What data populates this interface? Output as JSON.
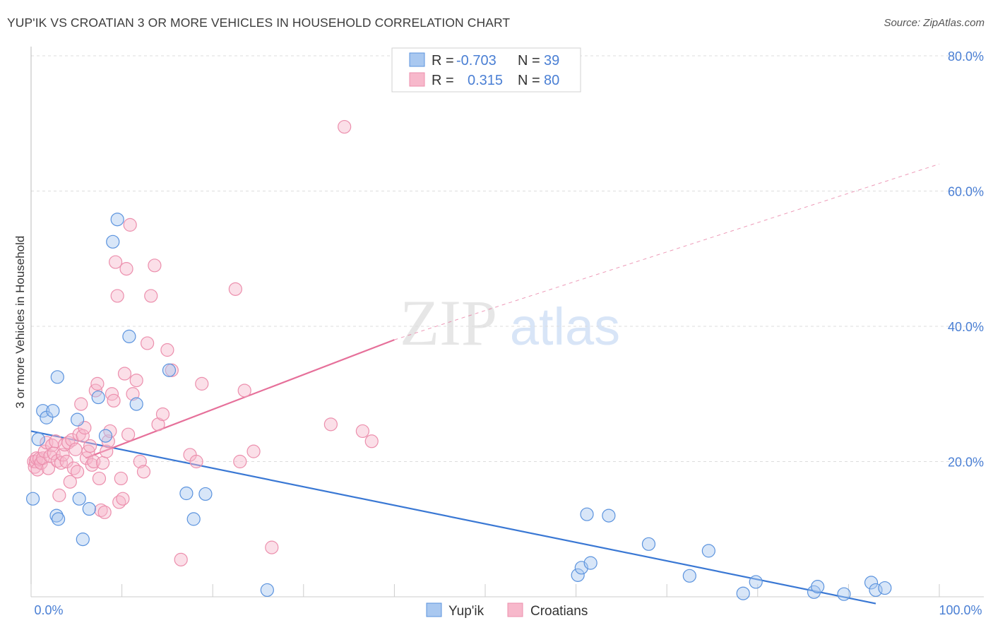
{
  "header": {
    "title": "YUP'IK VS CROATIAN 3 OR MORE VEHICLES IN HOUSEHOLD CORRELATION CHART",
    "source": "Source: ZipAtlas.com"
  },
  "legend_top": {
    "rows": [
      {
        "r_label": "R =",
        "r_value": "-0.703",
        "n_label": "N =",
        "n_value": "39"
      },
      {
        "r_label": "R =",
        "r_value": "0.315",
        "n_label": "N =",
        "n_value": "80"
      }
    ]
  },
  "legend_bottom": {
    "series1": "Yup'ik",
    "series2": "Croatians"
  },
  "watermark": {
    "zip": "ZIP",
    "atlas": "atlas"
  },
  "colors": {
    "yupik_fill": "#a9c8f0",
    "yupik_stroke": "#5b93de",
    "yupik_line": "#3a78d4",
    "croatian_fill": "#f7b8cb",
    "croatian_stroke": "#ec8fad",
    "croatian_line": "#e6709a",
    "grid": "#dddddd",
    "tick_label": "#4a7fd4"
  },
  "chart_data": {
    "type": "scatter",
    "title": "YUP'IK VS CROATIAN 3 OR MORE VEHICLES IN HOUSEHOLD CORRELATION CHART",
    "xlabel": "",
    "ylabel": "3 or more Vehicles in Household",
    "xlim": [
      0,
      100
    ],
    "ylim": [
      0,
      80
    ],
    "x_tick_labels": [
      "0.0%",
      "100.0%"
    ],
    "y_ticks": [
      20,
      40,
      60,
      80
    ],
    "y_tick_labels": [
      "20.0%",
      "40.0%",
      "60.0%",
      "80.0%"
    ],
    "grid": true,
    "legend_placement": "top-center",
    "series": [
      {
        "name": "Yup'ik",
        "r": -0.703,
        "n": 39,
        "trend": {
          "x": [
            0,
            93
          ],
          "y": [
            24.5,
            -1.0
          ],
          "dashed_extension": false
        },
        "points": [
          [
            0.2,
            14.5
          ],
          [
            0.8,
            23.3
          ],
          [
            1.3,
            27.5
          ],
          [
            1.7,
            26.5
          ],
          [
            2.4,
            27.5
          ],
          [
            2.8,
            12.0
          ],
          [
            3.0,
            11.5
          ],
          [
            2.9,
            32.5
          ],
          [
            5.1,
            26.2
          ],
          [
            5.3,
            14.5
          ],
          [
            5.7,
            8.5
          ],
          [
            6.4,
            13.0
          ],
          [
            7.4,
            29.5
          ],
          [
            8.2,
            23.8
          ],
          [
            9.0,
            52.5
          ],
          [
            9.5,
            55.8
          ],
          [
            10.8,
            38.5
          ],
          [
            11.6,
            28.5
          ],
          [
            15.2,
            33.5
          ],
          [
            17.1,
            15.3
          ],
          [
            17.9,
            11.5
          ],
          [
            19.2,
            15.2
          ],
          [
            26.0,
            1.0
          ],
          [
            60.2,
            3.2
          ],
          [
            60.6,
            4.3
          ],
          [
            61.2,
            12.2
          ],
          [
            61.6,
            5.0
          ],
          [
            63.6,
            12.0
          ],
          [
            68.0,
            7.8
          ],
          [
            72.5,
            3.1
          ],
          [
            74.6,
            6.8
          ],
          [
            78.4,
            0.5
          ],
          [
            79.8,
            2.2
          ],
          [
            86.2,
            0.7
          ],
          [
            86.6,
            1.5
          ],
          [
            89.5,
            0.4
          ],
          [
            92.5,
            2.1
          ],
          [
            93.0,
            1.0
          ],
          [
            94.0,
            1.3
          ]
        ]
      },
      {
        "name": "Croatians",
        "r": 0.315,
        "n": 80,
        "trend": {
          "x": [
            6,
            40
          ],
          "y": [
            20.5,
            38.0
          ],
          "extension_x": [
            40,
            100
          ],
          "extension_y": [
            38.0,
            64.0
          ],
          "dashed_extension": true
        },
        "points": [
          [
            0.3,
            20.0
          ],
          [
            0.4,
            19.2
          ],
          [
            0.5,
            20.0
          ],
          [
            0.6,
            20.5
          ],
          [
            0.7,
            18.8
          ],
          [
            0.9,
            20.4
          ],
          [
            1.1,
            19.8
          ],
          [
            1.3,
            20.5
          ],
          [
            1.5,
            21.5
          ],
          [
            1.7,
            22.8
          ],
          [
            1.9,
            19.0
          ],
          [
            2.1,
            20.8
          ],
          [
            2.3,
            22.4
          ],
          [
            2.5,
            21.2
          ],
          [
            2.7,
            23.0
          ],
          [
            2.9,
            20.1
          ],
          [
            3.1,
            15.0
          ],
          [
            3.3,
            19.8
          ],
          [
            3.5,
            21.0
          ],
          [
            3.7,
            22.5
          ],
          [
            3.9,
            20.0
          ],
          [
            4.1,
            22.8
          ],
          [
            4.3,
            17.0
          ],
          [
            4.5,
            23.2
          ],
          [
            4.7,
            19.0
          ],
          [
            4.9,
            21.8
          ],
          [
            5.1,
            18.5
          ],
          [
            5.3,
            24.0
          ],
          [
            5.5,
            28.5
          ],
          [
            5.7,
            23.8
          ],
          [
            5.9,
            25.0
          ],
          [
            6.1,
            20.5
          ],
          [
            6.3,
            21.5
          ],
          [
            6.5,
            22.3
          ],
          [
            6.7,
            19.5
          ],
          [
            6.9,
            20.0
          ],
          [
            7.1,
            30.5
          ],
          [
            7.3,
            31.5
          ],
          [
            7.5,
            17.5
          ],
          [
            7.7,
            12.8
          ],
          [
            7.9,
            19.8
          ],
          [
            8.1,
            12.5
          ],
          [
            8.3,
            21.5
          ],
          [
            8.5,
            23.0
          ],
          [
            8.7,
            24.5
          ],
          [
            8.9,
            30.0
          ],
          [
            9.1,
            29.0
          ],
          [
            9.3,
            49.5
          ],
          [
            9.5,
            44.5
          ],
          [
            9.7,
            14.0
          ],
          [
            9.9,
            17.5
          ],
          [
            10.1,
            14.5
          ],
          [
            10.3,
            33.0
          ],
          [
            10.5,
            48.5
          ],
          [
            10.7,
            24.0
          ],
          [
            10.9,
            55.0
          ],
          [
            11.2,
            30.0
          ],
          [
            11.6,
            32.0
          ],
          [
            12.0,
            20.0
          ],
          [
            12.4,
            18.5
          ],
          [
            12.8,
            37.5
          ],
          [
            13.2,
            44.5
          ],
          [
            13.6,
            49.0
          ],
          [
            14.0,
            25.5
          ],
          [
            14.5,
            27.0
          ],
          [
            15.0,
            36.5
          ],
          [
            15.5,
            33.5
          ],
          [
            16.5,
            5.5
          ],
          [
            17.5,
            21.0
          ],
          [
            18.2,
            20.0
          ],
          [
            18.8,
            31.5
          ],
          [
            22.5,
            45.5
          ],
          [
            23.0,
            20.0
          ],
          [
            23.5,
            30.5
          ],
          [
            24.5,
            21.5
          ],
          [
            26.5,
            7.3
          ],
          [
            33.0,
            25.5
          ],
          [
            34.5,
            69.5
          ],
          [
            36.5,
            24.5
          ],
          [
            37.5,
            23.0
          ]
        ]
      }
    ]
  }
}
